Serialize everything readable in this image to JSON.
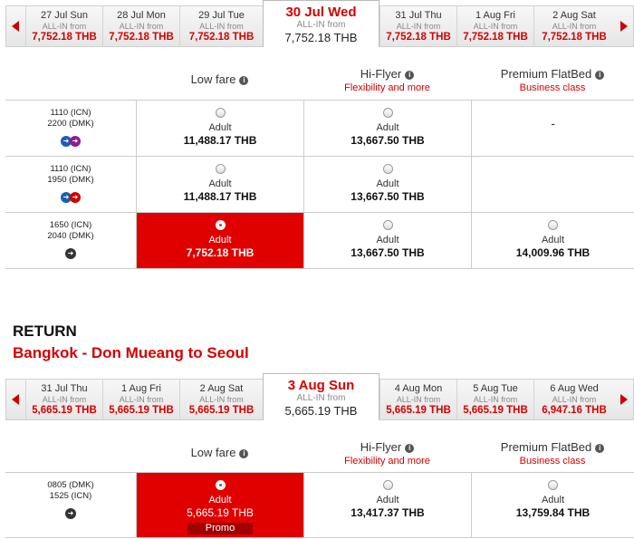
{
  "colors": {
    "accent": "#d40000",
    "selected_bg": "#e00000"
  },
  "outbound": {
    "days": [
      {
        "label": "27 Jul Sun",
        "allin": "ALL-IN from",
        "price": "7,752.18 THB"
      },
      {
        "label": "28 Jul Mon",
        "allin": "ALL-IN from",
        "price": "7,752.18 THB"
      },
      {
        "label": "29 Jul Tue",
        "allin": "ALL-IN from",
        "price": "7,752.18 THB"
      },
      {
        "label": "30 Jul Wed",
        "allin": "ALL-IN from",
        "price": "7,752.18 THB"
      },
      {
        "label": "31 Jul Thu",
        "allin": "ALL-IN from",
        "price": "7,752.18 THB"
      },
      {
        "label": "1 Aug Fri",
        "allin": "ALL-IN from",
        "price": "7,752.18 THB"
      },
      {
        "label": "2 Aug Sat",
        "allin": "ALL-IN from",
        "price": "7,752.18 THB"
      }
    ],
    "columns": [
      {
        "name": "Low fare",
        "sub": ""
      },
      {
        "name": "Hi-Flyer",
        "sub": "Flexibility and more"
      },
      {
        "name": "Premium FlatBed",
        "sub": "Business class"
      }
    ],
    "flights": [
      {
        "depart": "1110  (ICN)",
        "arrive": "2200  (DMK)",
        "fares": [
          {
            "pax": "Adult",
            "price": "11,488.17 THB"
          },
          {
            "pax": "Adult",
            "price": "13,667.50 THB"
          },
          {
            "pax": "",
            "price": "-"
          }
        ]
      },
      {
        "depart": "1110  (ICN)",
        "arrive": "1950  (DMK)",
        "fares": [
          {
            "pax": "Adult",
            "price": "11,488.17 THB"
          },
          {
            "pax": "Adult",
            "price": "13,667.50 THB"
          },
          {
            "pax": "",
            "price": ""
          }
        ]
      },
      {
        "depart": "1650  (ICN)",
        "arrive": "2040  (DMK)",
        "fares": [
          {
            "pax": "Adult",
            "price": "7,752.18 THB"
          },
          {
            "pax": "Adult",
            "price": "13,667.50 THB"
          },
          {
            "pax": "Adult",
            "price": "14,009.96 THB"
          }
        ]
      }
    ]
  },
  "return": {
    "heading": "RETURN",
    "route": "Bangkok - Don Mueang  to  Seoul",
    "days": [
      {
        "label": "31 Jul Thu",
        "allin": "ALL-IN from",
        "price": "5,665.19 THB"
      },
      {
        "label": "1 Aug Fri",
        "allin": "ALL-IN from",
        "price": "5,665.19 THB"
      },
      {
        "label": "2 Aug Sat",
        "allin": "ALL-IN from",
        "price": "5,665.19 THB"
      },
      {
        "label": "3 Aug Sun",
        "allin": "ALL-IN from",
        "price": "5,665.19 THB"
      },
      {
        "label": "4 Aug Mon",
        "allin": "ALL-IN from",
        "price": "5,665.19 THB"
      },
      {
        "label": "5 Aug Tue",
        "allin": "ALL-IN from",
        "price": "5,665.19 THB"
      },
      {
        "label": "6 Aug Wed",
        "allin": "ALL-IN from",
        "price": "6,947.16 THB"
      }
    ],
    "columns": [
      {
        "name": "Low fare",
        "sub": ""
      },
      {
        "name": "Hi-Flyer",
        "sub": "Flexibility and more"
      },
      {
        "name": "Premium FlatBed",
        "sub": "Business class"
      }
    ],
    "flights": [
      {
        "depart": "0805  (DMK)",
        "arrive": "1525  (ICN)",
        "fares": [
          {
            "pax": "Adult",
            "price": "5,665.19 THB",
            "promo": "Promo"
          },
          {
            "pax": "Adult",
            "price": "13,417.37 THB"
          },
          {
            "pax": "Adult",
            "price": "13,759.84 THB"
          }
        ]
      }
    ]
  }
}
